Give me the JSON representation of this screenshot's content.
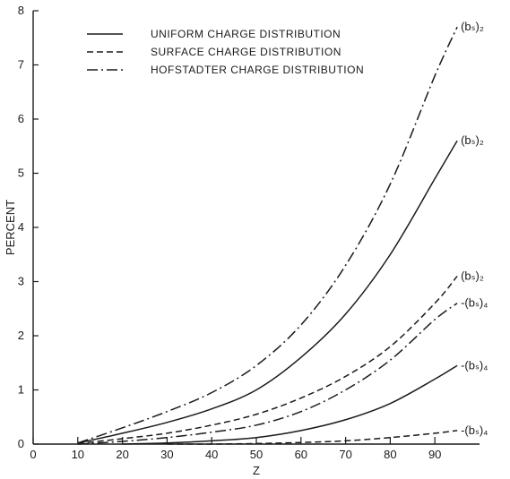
{
  "chart_data": {
    "type": "line",
    "xlabel": "Z",
    "ylabel": "PERCENT",
    "xlim": [
      0,
      100
    ],
    "ylim": [
      0,
      8
    ],
    "xticks": [
      "0",
      "10",
      "20",
      "30",
      "40",
      "50",
      "60",
      "70",
      "80",
      "90"
    ],
    "yticks": [
      "0",
      "1",
      "2",
      "3",
      "4",
      "5",
      "6",
      "7",
      "8"
    ],
    "legend_position": "top-left",
    "legend": [
      {
        "label": "UNIFORM CHARGE DISTRIBUTION",
        "style": "solid"
      },
      {
        "label": "SURFACE CHARGE DISTRIBUTION",
        "style": "dashed"
      },
      {
        "label": "HOFSTADTER CHARGE DISTRIBUTION",
        "style": "dashdot"
      }
    ],
    "series": [
      {
        "distribution": "HOFSTADTER CHARGE DISTRIBUTION",
        "style": "dashdot",
        "label": "(bₛ)₂",
        "x": [
          10,
          20,
          30,
          40,
          50,
          60,
          70,
          80,
          90,
          95
        ],
        "y": [
          0.02,
          0.3,
          0.6,
          0.95,
          1.45,
          2.2,
          3.3,
          4.8,
          6.8,
          7.7
        ]
      },
      {
        "distribution": "UNIFORM CHARGE DISTRIBUTION",
        "style": "solid",
        "label": "(bₛ)₂",
        "x": [
          10,
          20,
          30,
          40,
          50,
          60,
          70,
          80,
          90,
          95
        ],
        "y": [
          0.02,
          0.2,
          0.4,
          0.65,
          1.0,
          1.6,
          2.4,
          3.5,
          4.9,
          5.6
        ]
      },
      {
        "distribution": "SURFACE CHARGE DISTRIBUTION",
        "style": "dashed",
        "label": "(bₛ)₂",
        "x": [
          10,
          20,
          30,
          40,
          50,
          60,
          70,
          80,
          90,
          95
        ],
        "y": [
          0.01,
          0.1,
          0.2,
          0.35,
          0.55,
          0.85,
          1.25,
          1.8,
          2.6,
          3.1
        ]
      },
      {
        "distribution": "HOFSTADTER CHARGE DISTRIBUTION",
        "style": "dashdot",
        "label": "-(bₛ)₄",
        "x": [
          10,
          20,
          30,
          40,
          50,
          60,
          70,
          80,
          90,
          95
        ],
        "y": [
          0.0,
          0.05,
          0.12,
          0.22,
          0.35,
          0.6,
          1.0,
          1.55,
          2.3,
          2.6
        ]
      },
      {
        "distribution": "UNIFORM CHARGE DISTRIBUTION",
        "style": "solid",
        "label": "-(bₛ)₄",
        "x": [
          20,
          30,
          40,
          50,
          60,
          70,
          80,
          90,
          95
        ],
        "y": [
          0.0,
          0.02,
          0.06,
          0.12,
          0.25,
          0.45,
          0.75,
          1.2,
          1.45
        ]
      },
      {
        "distribution": "SURFACE CHARGE DISTRIBUTION",
        "style": "dashed",
        "label": "-(bₛ)₄",
        "x": [
          30,
          40,
          50,
          60,
          70,
          80,
          90,
          95
        ],
        "y": [
          0.0,
          0.0,
          0.01,
          0.03,
          0.06,
          0.12,
          0.2,
          0.25
        ]
      }
    ]
  },
  "colors": {
    "ink": "#1a1a1a",
    "background": "#ffffff"
  }
}
